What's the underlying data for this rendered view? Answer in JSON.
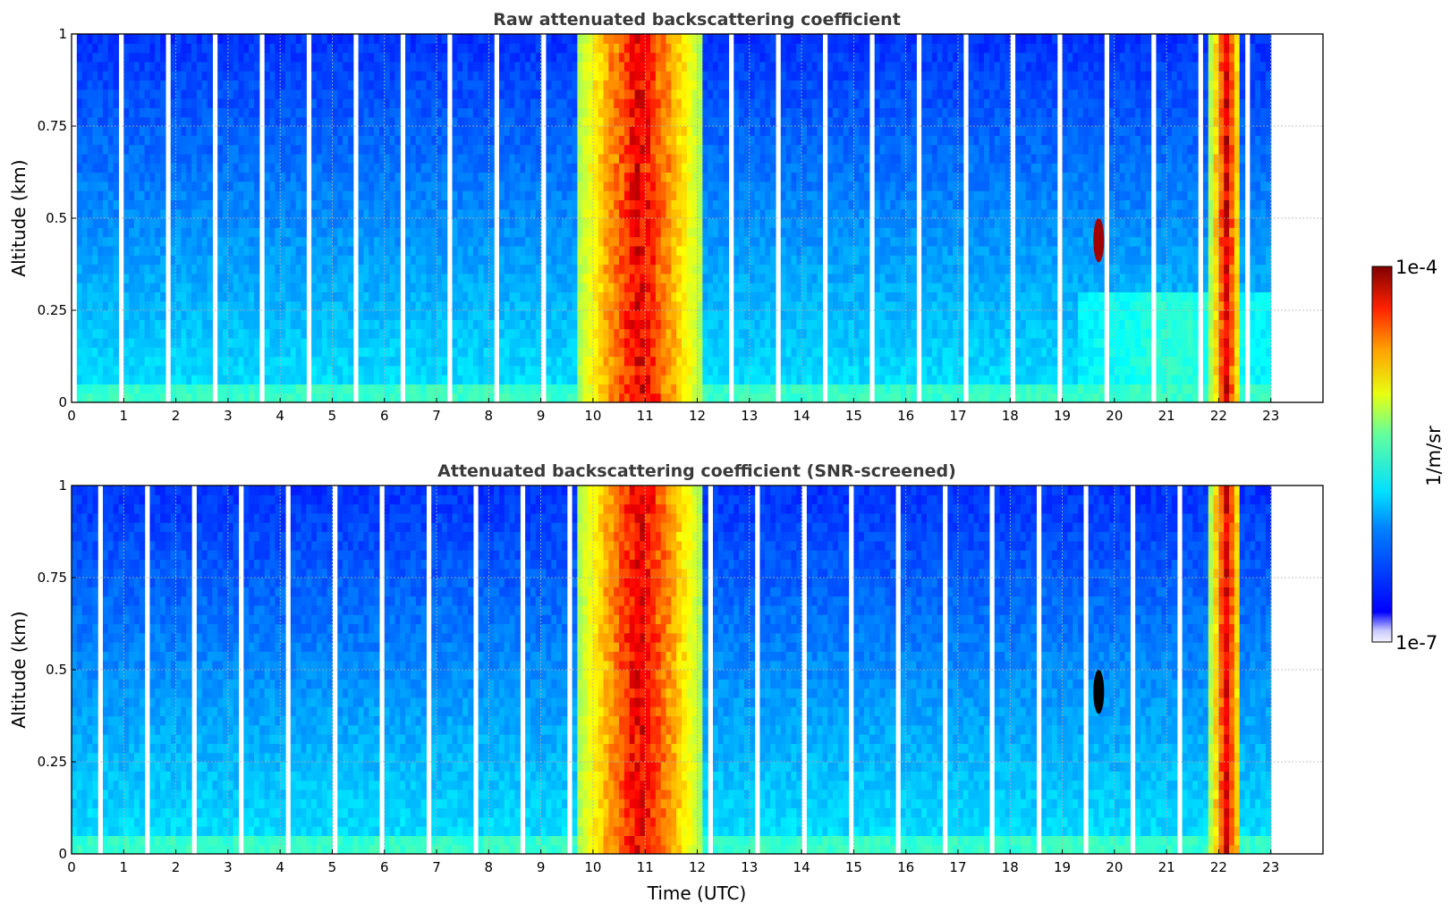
{
  "chart_data": [
    {
      "type": "heatmap",
      "title": "Raw attenuated backscattering coefficient",
      "xlabel": "",
      "ylabel": "Altitude (km)",
      "xlim": [
        0,
        24
      ],
      "ylim": [
        0,
        1
      ],
      "xticks": [
        "0",
        "1",
        "2",
        "3",
        "4",
        "5",
        "6",
        "7",
        "8",
        "9",
        "10",
        "11",
        "12",
        "13",
        "14",
        "15",
        "16",
        "17",
        "18",
        "19",
        "20",
        "21",
        "22",
        "23"
      ],
      "yticks": [
        "0",
        "0.25",
        "0.5",
        "0.75",
        "1"
      ],
      "grid": true,
      "data_extent_hours": [
        0,
        23
      ],
      "screening": "none",
      "features": [
        {
          "desc": "high backscatter layer",
          "time_start": 9.7,
          "time_end": 12.0,
          "altitude_km": [
            0,
            1
          ]
        },
        {
          "desc": "peak backscatter spot",
          "time": 19.7,
          "altitude_km": [
            0.38,
            0.5
          ]
        },
        {
          "desc": "high backscatter layer",
          "time_start": 21.8,
          "time_end": 22.4,
          "altitude_km": [
            0,
            1
          ]
        },
        {
          "desc": "near-surface aerosol layer",
          "time_start": 19.3,
          "time_end": 23.0,
          "altitude_km": [
            0,
            0.3
          ]
        }
      ]
    },
    {
      "type": "heatmap",
      "title": "Attenuated backscattering coefficient (SNR-screened)",
      "xlabel": "Time (UTC)",
      "ylabel": "Altitude (km)",
      "xlim": [
        0,
        24
      ],
      "ylim": [
        0,
        1
      ],
      "xticks": [
        "0",
        "1",
        "2",
        "3",
        "4",
        "5",
        "6",
        "7",
        "8",
        "9",
        "10",
        "11",
        "12",
        "13",
        "14",
        "15",
        "16",
        "17",
        "18",
        "19",
        "20",
        "21",
        "22",
        "23"
      ],
      "yticks": [
        "0",
        "0.25",
        "0.5",
        "0.75",
        "1"
      ],
      "grid": true,
      "data_extent_hours": [
        0,
        23
      ],
      "screening": "SNR",
      "features": [
        {
          "desc": "high backscatter layer",
          "time_start": 9.7,
          "time_end": 12.0,
          "altitude_km": [
            0,
            1
          ]
        },
        {
          "desc": "saturated spot",
          "time": 19.7,
          "altitude_km": [
            0.38,
            0.5
          ]
        },
        {
          "desc": "high backscatter layer",
          "time_start": 21.8,
          "time_end": 22.4,
          "altitude_km": [
            0,
            1
          ]
        }
      ]
    }
  ],
  "colorbar": {
    "label": "1/m/sr",
    "max_label": "1e-4",
    "min_label": "1e-7",
    "range": [
      1e-07,
      0.0001
    ],
    "scale": "log",
    "colormap": "jet"
  }
}
